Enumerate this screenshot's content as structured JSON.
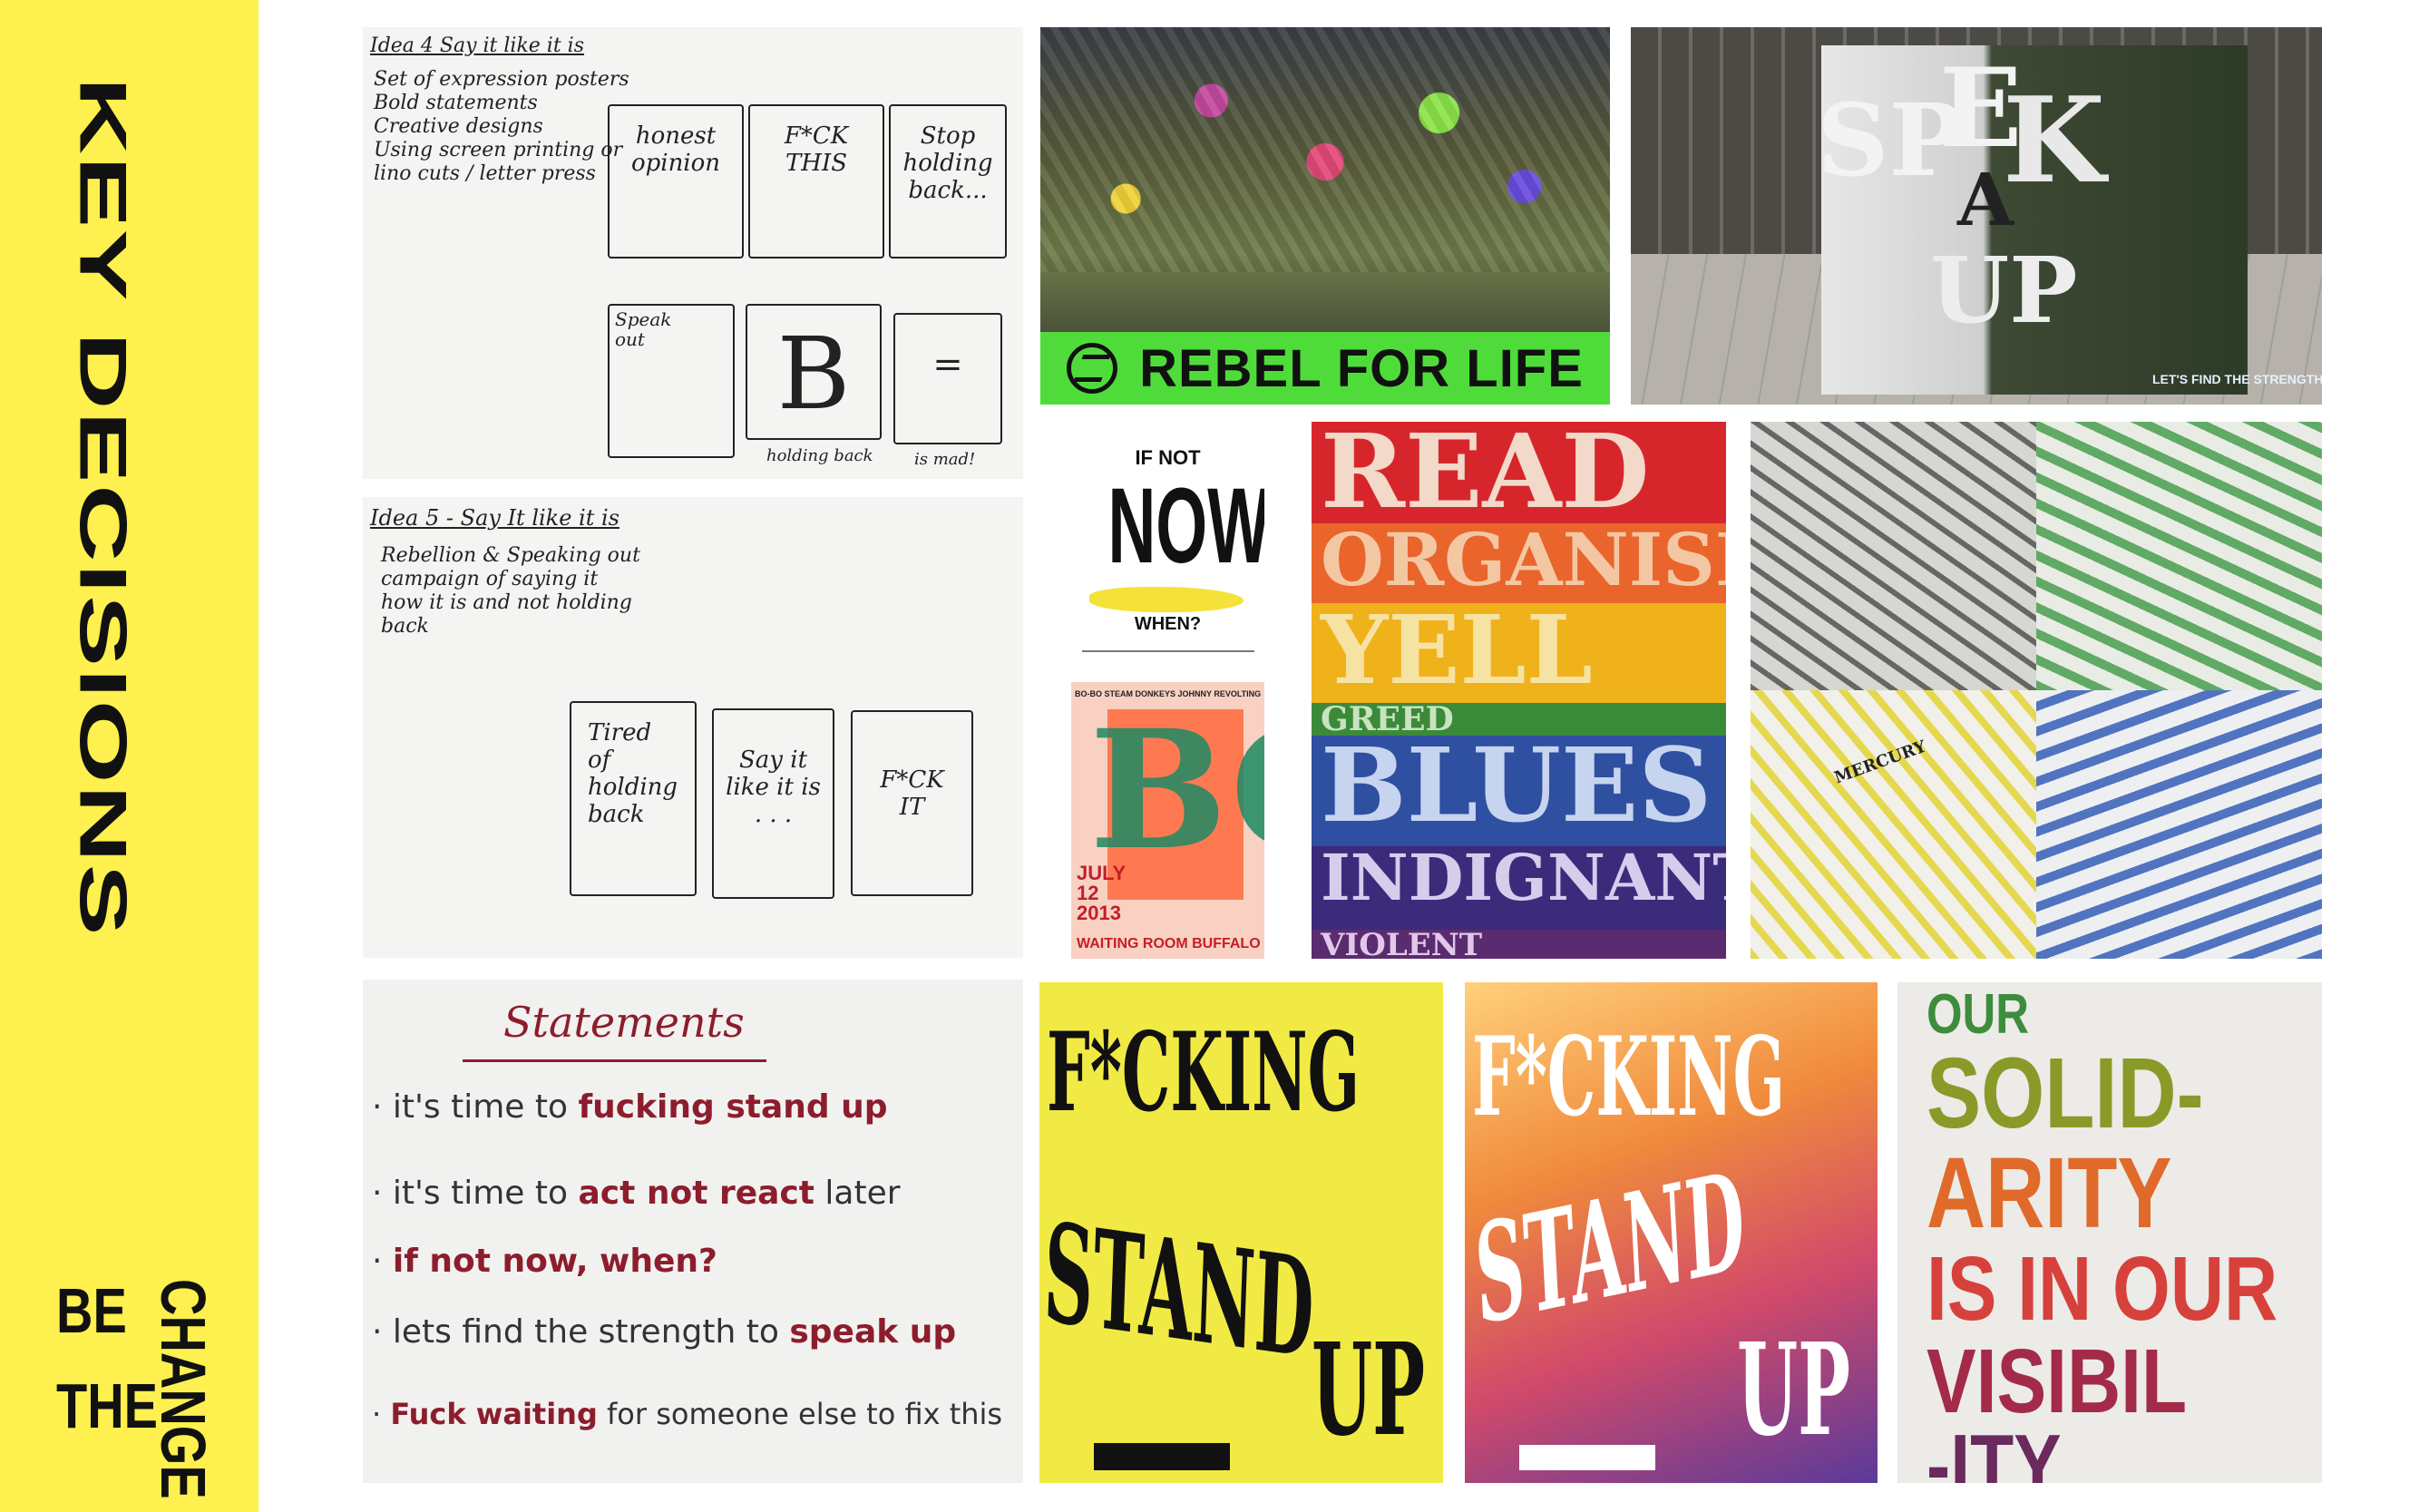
{
  "sidebar": {
    "title": "KEY DECISIONS",
    "brand": {
      "line1": "BE",
      "line2": "THE",
      "line3": "CHANGE"
    },
    "bg_color": "#fdf04f"
  },
  "sketch1": {
    "heading": "Idea 4  Say it like it is",
    "notes": "Set of expression posters\nBold statements\nCreative designs\nUsing screen printing or\nlino cuts / letter press",
    "boxes": [
      "honest\nopinion",
      "F*CK\nTHIS",
      "Stop\nholding\nback...",
      "Speak\nout",
      "B",
      "="
    ],
    "captions": [
      "holding back",
      "is mad!"
    ]
  },
  "sketch2": {
    "heading": "Idea 5 - Say It like it is",
    "notes": "Rebellion & Speaking out\ncampaign of saying it\nhow it is and not holding\nback",
    "boxes": [
      "Tired\nof\nholding\nback",
      "Say it\nlike it is\n. . .",
      "F*CK\nIT"
    ]
  },
  "photo_protest": {
    "banner": "REBEL FOR LIFE"
  },
  "photo_cube": {
    "letters": [
      "SP",
      "E",
      "A",
      "K",
      "UP"
    ],
    "tagline": "LET'S FIND THE STRENGTH TO SPEAK UP."
  },
  "poster_now": {
    "top": "IF NOT",
    "middle": "NOW",
    "bottom": "WHEN?"
  },
  "poster_bobo": {
    "header": "BO-BO  STEAM DONKEYS  JOHNNY REVOLTING  THE CAIRNS",
    "date": "JULY\n12\n2013",
    "venue": "WAITING ROOM  BUFFALO",
    "big": "BO"
  },
  "rainbow": {
    "rows": [
      {
        "text": "READ",
        "color": "#d6262c"
      },
      {
        "text": "ORGANISE",
        "color": "#e9652b"
      },
      {
        "text": "YELL",
        "color": "#f0b21b"
      },
      {
        "text": "GREED",
        "color": "#3b8a3a"
      },
      {
        "text": "BLUES",
        "color": "#2f4fa0"
      },
      {
        "text": "INDIGNANT",
        "color": "#3b2b7b"
      },
      {
        "text": "VIOLENT",
        "color": "#5a2b6e"
      }
    ]
  },
  "collage": {
    "label": "MERCURY"
  },
  "statements": {
    "title": "Statements",
    "lines": [
      {
        "pre": "· it's time to ",
        "hl": "fucking stand up",
        "post": ""
      },
      {
        "pre": "· it's time to ",
        "hl": "act not react",
        "post": " later"
      },
      {
        "pre": "· ",
        "hl": "if not now, when?",
        "post": ""
      },
      {
        "pre": "· lets find the strength to ",
        "hl": "speak up",
        "post": ""
      },
      {
        "pre": "· ",
        "hl": "Fuck waiting",
        "post": " for someone else to fix this"
      }
    ]
  },
  "poster_yellow": {
    "line1": "F*CKING",
    "line2": "STAND",
    "line3": "UP"
  },
  "poster_gradient": {
    "line1": "F*CKING",
    "line2": "STAND",
    "line3": "UP"
  },
  "poster_solidarity": {
    "lines": [
      "OUR",
      "SOLID-",
      "ARITY",
      "IS IN OUR",
      "VISIBIL",
      "-ITY"
    ]
  }
}
